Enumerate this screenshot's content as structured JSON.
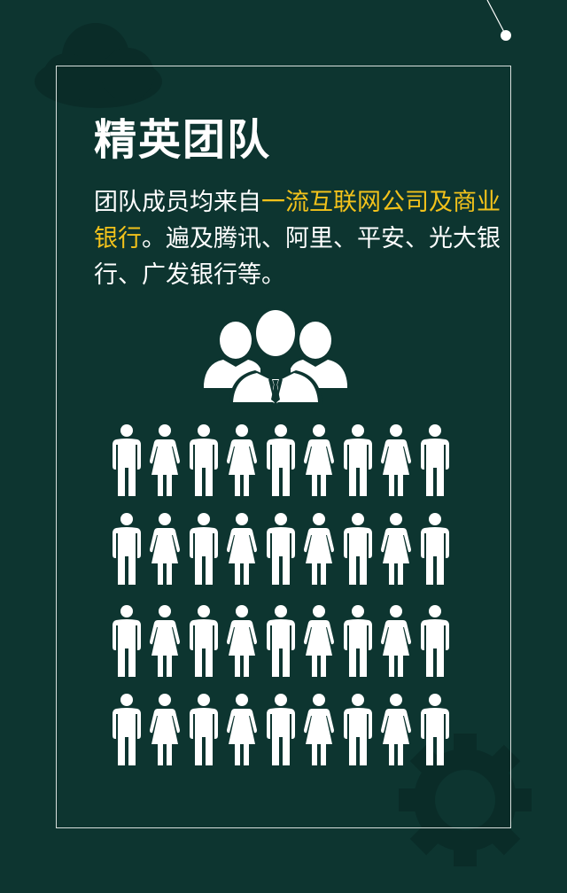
{
  "title": "精英团队",
  "description": {
    "part1": "团队成员均来自",
    "highlight": "一流互联网公司及商业银行",
    "part2": "。遍及腾讯、阿里、平安、光大银行、广发银行等。"
  },
  "colors": {
    "background": "#0d3530",
    "highlight": "#f2c21b",
    "text": "#ffffff"
  },
  "icons": {
    "team": "team-icon",
    "male": "male-person-icon",
    "female": "female-person-icon",
    "cloud": "cloud-icon",
    "gear": "gear-icon"
  },
  "crowd": {
    "rows": 4,
    "pattern": [
      "male",
      "female",
      "male",
      "female",
      "male",
      "female",
      "male",
      "female",
      "male"
    ]
  }
}
